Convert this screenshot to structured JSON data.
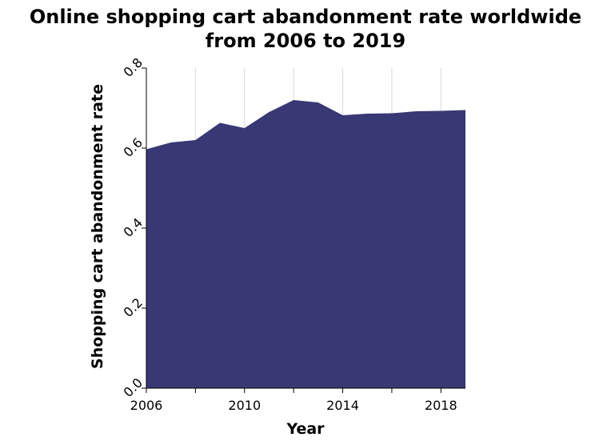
{
  "chart_data": {
    "type": "area",
    "title": "Online shopping cart abandonment rate worldwide\nfrom 2006 to 2019",
    "xlabel": "Year",
    "ylabel": "Shopping cart abandonment rate",
    "x": [
      2006,
      2007,
      2008,
      2009,
      2010,
      2011,
      2012,
      2013,
      2014,
      2015,
      2016,
      2017,
      2018,
      2019
    ],
    "values": [
      0.597,
      0.614,
      0.62,
      0.663,
      0.65,
      0.69,
      0.72,
      0.714,
      0.682,
      0.686,
      0.687,
      0.692,
      0.693,
      0.695
    ],
    "xlim": [
      2006,
      2019
    ],
    "ylim": [
      0,
      0.8
    ],
    "x_ticks": [
      "2006",
      "2010",
      "2014",
      "2018"
    ],
    "y_ticks": [
      "0.0",
      "0.2",
      "0.4",
      "0.6",
      "0.8"
    ],
    "fill_color": "#383874",
    "grid": "vertical"
  }
}
